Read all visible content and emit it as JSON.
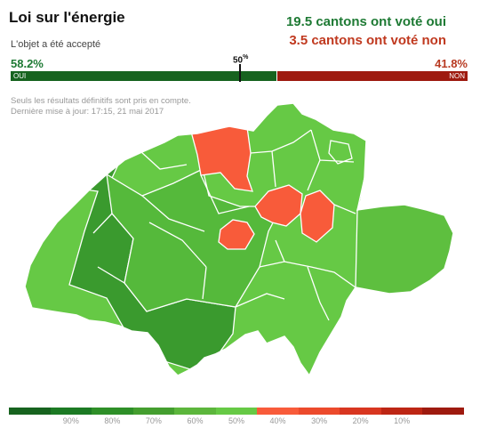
{
  "header": {
    "title": "Loi sur l'énergie",
    "subtitle": "L'objet a été accepté"
  },
  "summary": {
    "yes_cantons": "19.5 cantons ont voté oui",
    "no_cantons": "3.5 cantons ont voté non"
  },
  "result": {
    "yes_percent": 58.2,
    "no_percent": 41.8,
    "yes_text": "58.2%",
    "no_text": "41.8%",
    "yes_label": "OUI",
    "no_label": "NON",
    "midpoint_label": "50",
    "midpoint_suffix": "%"
  },
  "notes": {
    "line1": "Seuls les résultats définitifs sont pris en compte.",
    "line2": "Dernière mise à jour: 17:15, 21 mai 2017"
  },
  "colors": {
    "yes_dark": "#17631f",
    "no_dark": "#9e1a0f",
    "map_dark_green": "#3a9a2e",
    "map_green": "#55b93b",
    "map_light_green": "#66c945",
    "map_red": "#f85b3a"
  },
  "legend": {
    "colors": [
      "#17631f",
      "#1c7a24",
      "#2e8f28",
      "#449e2f",
      "#5cb63c",
      "#66c945",
      "#f85b3a",
      "#ec4a2c",
      "#d83620",
      "#bd2614",
      "#9e1a0f"
    ],
    "ticks": [
      "90%",
      "80%",
      "70%",
      "60%",
      "50%",
      "40%",
      "30%",
      "20%",
      "10%"
    ]
  }
}
